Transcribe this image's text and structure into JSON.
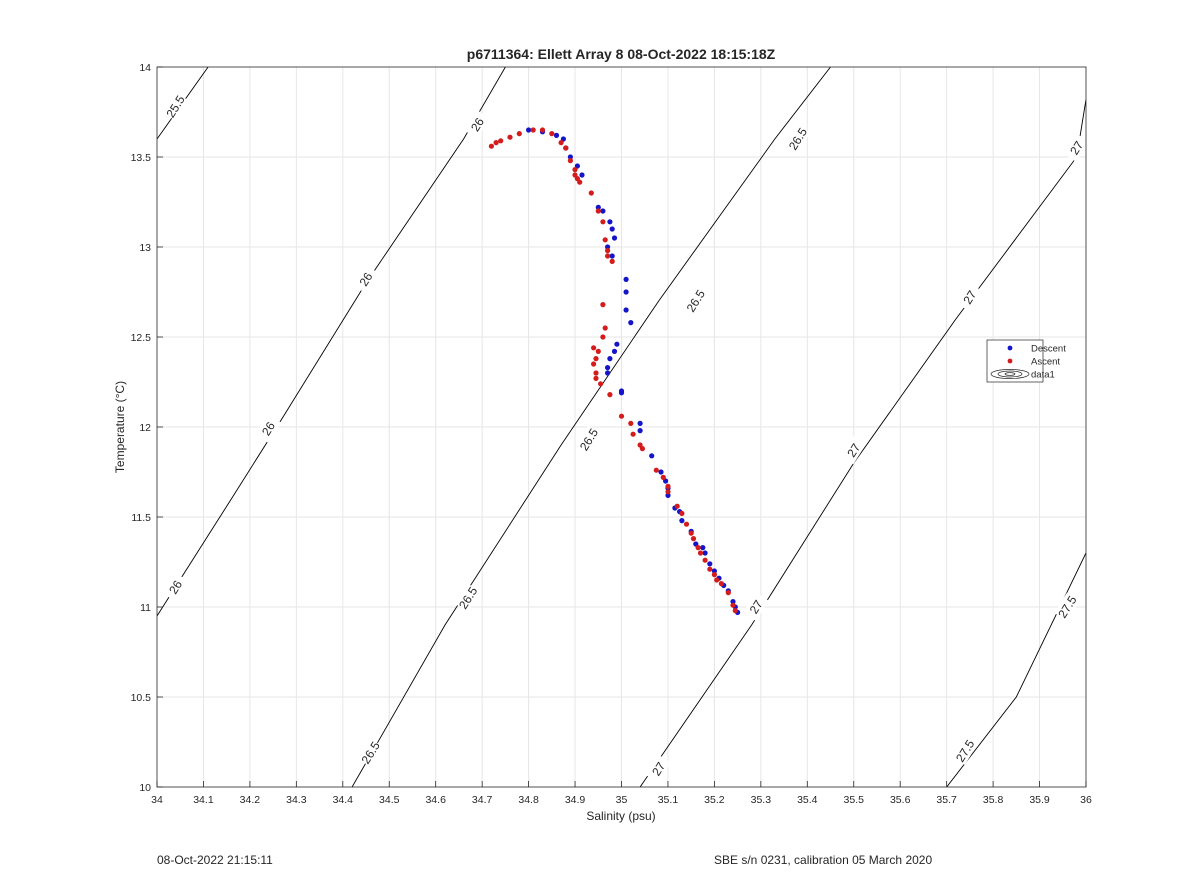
{
  "window": {
    "title": "p6711364: Ellett Array 8 08-Oct-2022 18:15:18Z"
  },
  "footer": {
    "left": "08-Oct-2022 21:15:11",
    "right": "SBE s/n 0231, calibration 05 March 2020"
  },
  "colors": {
    "descent": "#1414c8",
    "ascent": "#d41c1c",
    "grid": "#e6e6e6",
    "axis": "#262626",
    "contour": "#000000"
  },
  "chart_data": {
    "type": "scatter",
    "title": "p6711364: Ellett Array 8 08-Oct-2022 18:15:18Z",
    "xlabel": "Salinity (psu)",
    "ylabel": "Temperature (°C)",
    "xlim": [
      34,
      36
    ],
    "ylim": [
      10,
      14
    ],
    "xticks": [
      34,
      34.1,
      34.2,
      34.3,
      34.4,
      34.5,
      34.6,
      34.7,
      34.8,
      34.9,
      35,
      35.1,
      35.2,
      35.3,
      35.4,
      35.5,
      35.6,
      35.7,
      35.8,
      35.9,
      36
    ],
    "xtick_labels": [
      "34",
      "34.1",
      "34.2",
      "34.3",
      "34.4",
      "34.5",
      "34.6",
      "34.7",
      "34.8",
      "34.9",
      "35",
      "35.1",
      "35.2",
      "35.3",
      "35.4",
      "35.5",
      "35.6",
      "35.7",
      "35.8",
      "35.9",
      "36"
    ],
    "yticks": [
      10,
      10.5,
      11,
      11.5,
      12,
      12.5,
      13,
      13.5,
      14
    ],
    "ytick_labels": [
      "10",
      "10.5",
      "11",
      "11.5",
      "12",
      "12.5",
      "13",
      "13.5",
      "14"
    ],
    "grid": true,
    "legend_position": "right",
    "legend": [
      "Descent",
      "Ascent",
      "data1"
    ],
    "contours": [
      {
        "level": "25.5",
        "points": [
          [
            34.0,
            13.6
          ],
          [
            34.11,
            14.0
          ]
        ],
        "labels": [
          [
            34.04,
            13.78
          ]
        ]
      },
      {
        "level": "26",
        "points": [
          [
            34.0,
            10.95
          ],
          [
            34.16,
            11.6
          ],
          [
            34.27,
            12.05
          ],
          [
            34.45,
            12.8
          ],
          [
            34.66,
            13.6
          ],
          [
            34.75,
            14.0
          ]
        ],
        "labels": [
          [
            34.04,
            11.11
          ],
          [
            34.24,
            11.99
          ],
          [
            34.45,
            12.82
          ],
          [
            34.69,
            13.68
          ]
        ]
      },
      {
        "level": "26.5",
        "points": [
          [
            34.42,
            10.0
          ],
          [
            34.62,
            10.9
          ],
          [
            34.87,
            11.9
          ],
          [
            35.08,
            12.7
          ],
          [
            35.33,
            13.6
          ],
          [
            35.45,
            14.0
          ]
        ],
        "labels": [
          [
            34.46,
            10.19
          ],
          [
            34.67,
            11.05
          ],
          [
            34.93,
            11.93
          ],
          [
            35.16,
            12.7
          ],
          [
            35.38,
            13.6
          ]
        ]
      },
      {
        "level": "27",
        "points": [
          [
            35.04,
            10.0
          ],
          [
            35.28,
            10.9
          ],
          [
            35.5,
            11.8
          ],
          [
            35.72,
            12.6
          ],
          [
            35.98,
            13.5
          ],
          [
            36.0,
            13.82
          ]
        ],
        "labels": [
          [
            35.08,
            10.1
          ],
          [
            35.29,
            11.0
          ],
          [
            35.5,
            11.87
          ],
          [
            35.75,
            12.72
          ],
          [
            35.98,
            13.55
          ]
        ]
      },
      {
        "level": "27.5",
        "points": [
          [
            35.7,
            10.0
          ],
          [
            35.85,
            10.5
          ],
          [
            36.0,
            11.3
          ]
        ],
        "labels": [
          [
            35.74,
            10.2
          ],
          [
            35.96,
            11.0
          ]
        ]
      }
    ],
    "series": [
      {
        "name": "Descent",
        "points": [
          [
            34.8,
            13.65
          ],
          [
            34.83,
            13.64
          ],
          [
            34.86,
            13.62
          ],
          [
            34.875,
            13.6
          ],
          [
            34.88,
            13.55
          ],
          [
            34.89,
            13.5
          ],
          [
            34.905,
            13.45
          ],
          [
            34.915,
            13.4
          ],
          [
            34.95,
            13.22
          ],
          [
            34.96,
            13.2
          ],
          [
            34.975,
            13.14
          ],
          [
            34.98,
            13.1
          ],
          [
            34.985,
            13.05
          ],
          [
            34.97,
            13.0
          ],
          [
            34.98,
            12.95
          ],
          [
            35.01,
            12.82
          ],
          [
            35.01,
            12.75
          ],
          [
            35.01,
            12.65
          ],
          [
            35.02,
            12.58
          ],
          [
            34.99,
            12.46
          ],
          [
            34.985,
            12.42
          ],
          [
            34.975,
            12.38
          ],
          [
            34.97,
            12.33
          ],
          [
            34.97,
            12.3
          ],
          [
            35.0,
            12.2
          ],
          [
            35.0,
            12.19
          ],
          [
            35.04,
            12.02
          ],
          [
            35.04,
            11.98
          ],
          [
            35.065,
            11.84
          ],
          [
            35.085,
            11.75
          ],
          [
            35.095,
            11.7
          ],
          [
            35.1,
            11.66
          ],
          [
            35.1,
            11.62
          ],
          [
            35.115,
            11.55
          ],
          [
            35.125,
            11.53
          ],
          [
            35.13,
            11.48
          ],
          [
            35.15,
            11.42
          ],
          [
            35.16,
            11.35
          ],
          [
            35.175,
            11.33
          ],
          [
            35.18,
            11.3
          ],
          [
            35.19,
            11.24
          ],
          [
            35.2,
            11.2
          ],
          [
            35.21,
            11.16
          ],
          [
            35.22,
            11.12
          ],
          [
            35.23,
            11.09
          ],
          [
            35.24,
            11.03
          ],
          [
            35.245,
            11.0
          ],
          [
            35.25,
            10.97
          ]
        ]
      },
      {
        "name": "Ascent",
        "points": [
          [
            34.72,
            13.56
          ],
          [
            34.73,
            13.58
          ],
          [
            34.74,
            13.59
          ],
          [
            34.76,
            13.61
          ],
          [
            34.78,
            13.63
          ],
          [
            34.81,
            13.65
          ],
          [
            34.83,
            13.65
          ],
          [
            34.85,
            13.63
          ],
          [
            34.87,
            13.58
          ],
          [
            34.88,
            13.55
          ],
          [
            34.89,
            13.48
          ],
          [
            34.9,
            13.43
          ],
          [
            34.9,
            13.4
          ],
          [
            34.905,
            13.38
          ],
          [
            34.91,
            13.36
          ],
          [
            34.935,
            13.3
          ],
          [
            34.95,
            13.2
          ],
          [
            34.96,
            13.14
          ],
          [
            34.965,
            13.04
          ],
          [
            34.97,
            12.98
          ],
          [
            34.97,
            12.95
          ],
          [
            34.98,
            12.92
          ],
          [
            34.96,
            12.68
          ],
          [
            34.965,
            12.55
          ],
          [
            34.96,
            12.5
          ],
          [
            34.94,
            12.44
          ],
          [
            34.95,
            12.42
          ],
          [
            34.945,
            12.38
          ],
          [
            34.94,
            12.35
          ],
          [
            34.945,
            12.3
          ],
          [
            34.945,
            12.27
          ],
          [
            34.955,
            12.24
          ],
          [
            34.975,
            12.18
          ],
          [
            35.0,
            12.06
          ],
          [
            35.02,
            12.02
          ],
          [
            35.025,
            11.96
          ],
          [
            35.04,
            11.9
          ],
          [
            35.045,
            11.88
          ],
          [
            35.075,
            11.76
          ],
          [
            35.09,
            11.72
          ],
          [
            35.1,
            11.67
          ],
          [
            35.1,
            11.64
          ],
          [
            35.12,
            11.56
          ],
          [
            35.13,
            11.52
          ],
          [
            35.14,
            11.46
          ],
          [
            35.15,
            11.41
          ],
          [
            35.155,
            11.38
          ],
          [
            35.165,
            11.33
          ],
          [
            35.17,
            11.3
          ],
          [
            35.18,
            11.26
          ],
          [
            35.19,
            11.21
          ],
          [
            35.2,
            11.18
          ],
          [
            35.205,
            11.15
          ],
          [
            35.215,
            11.13
          ],
          [
            35.23,
            11.08
          ],
          [
            35.24,
            11.01
          ],
          [
            35.245,
            10.98
          ]
        ]
      }
    ]
  }
}
